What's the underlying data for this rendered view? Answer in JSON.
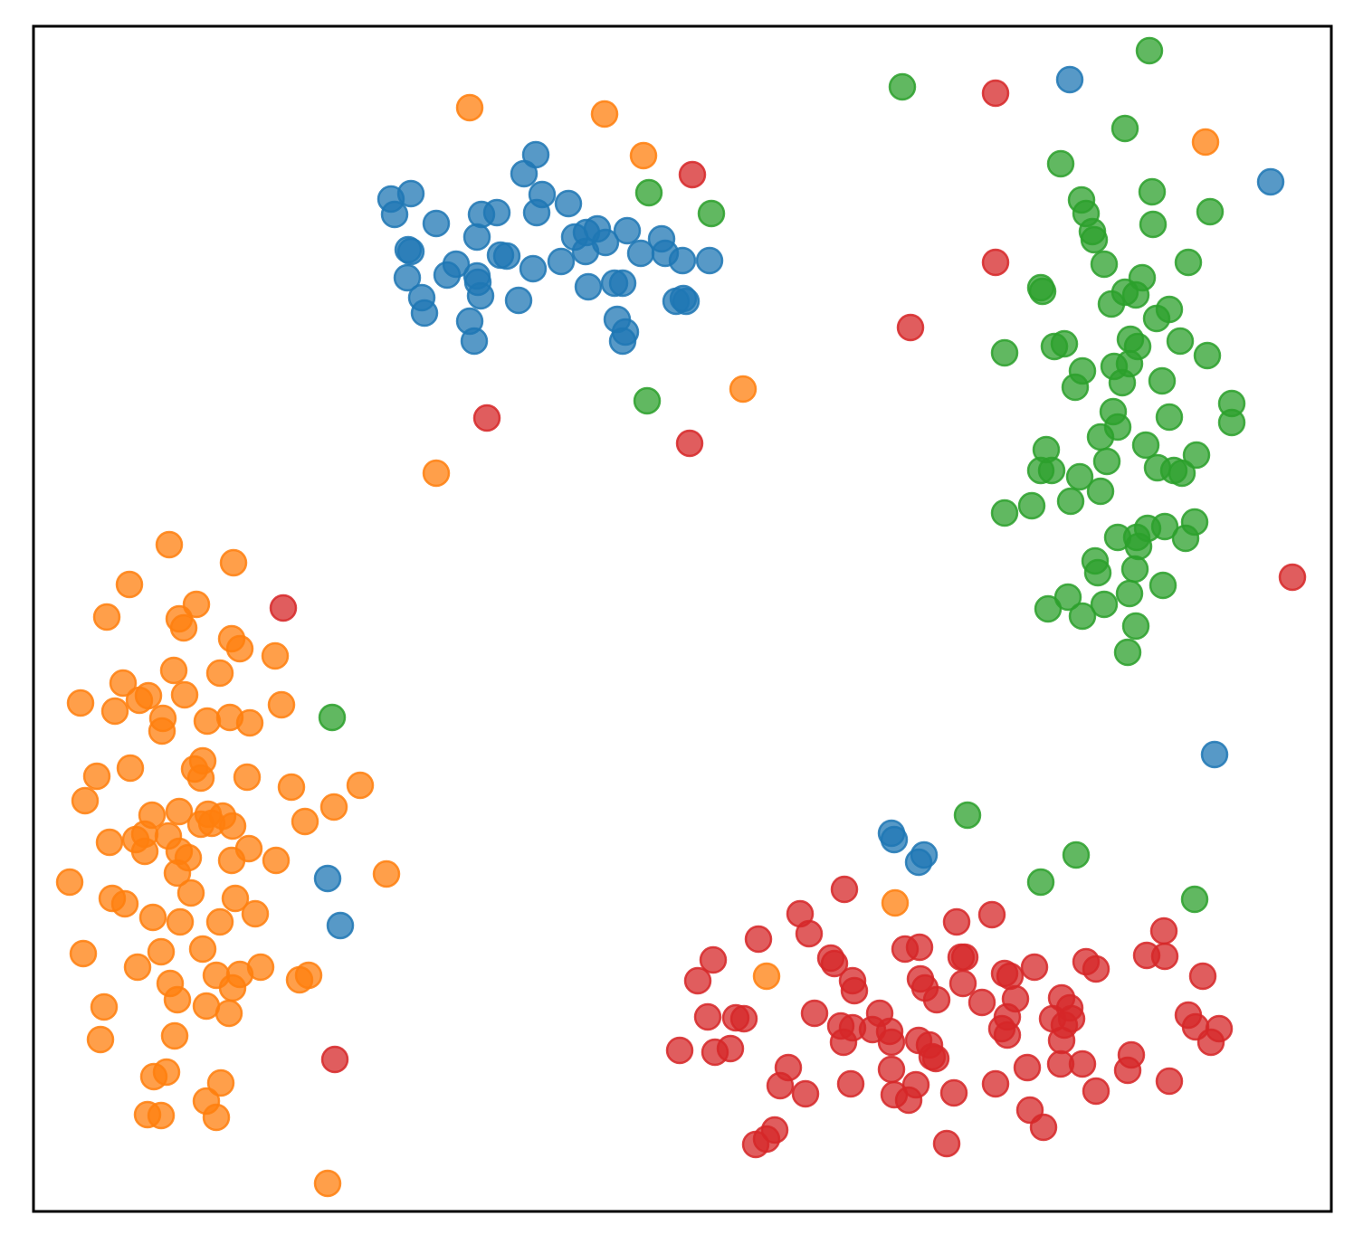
{
  "chart_data": {
    "type": "scatter",
    "xlim": [
      37,
      1471
    ],
    "ylim": [
      1339,
      29
    ],
    "series": [
      {
        "color": "#1f77b4",
        "x": [
          432,
          454,
          436,
          482,
          532,
          549,
          527,
          451,
          454,
          450,
          466,
          469,
          494,
          504,
          527,
          528,
          531,
          519,
          524,
          553,
          560,
          573,
          589,
          579,
          592,
          599,
          593,
          628,
          620,
          635,
          648,
          660,
          647,
          669,
          650,
          679,
          688,
          693,
          708,
          731,
          735,
          754,
          784,
          682,
          691,
          688,
          747,
          758,
          755,
          1182,
          1404,
          1342,
          985,
          988,
          1021,
          1015,
          362,
          376
        ],
        "y": [
          220,
          214,
          237,
          247,
          237,
          235,
          262,
          276,
          278,
          307,
          329,
          346,
          304,
          292,
          305,
          312,
          327,
          355,
          377,
          282,
          283,
          332,
          297,
          192,
          171,
          215,
          235,
          225,
          289,
          262,
          257,
          253,
          278,
          268,
          317,
          313,
          313,
          255,
          280,
          264,
          280,
          288,
          288,
          353,
          367,
          377,
          333,
          333,
          330,
          88,
          201,
          834,
          921,
          928,
          945,
          953,
          971,
          1023
        ]
      },
      {
        "color": "#ff7f0e",
        "x": [
          187,
          258,
          143,
          118,
          217,
          198,
          203,
          256,
          265,
          304,
          192,
          243,
          136,
          89,
          127,
          154,
          164,
          204,
          180,
          179,
          229,
          254,
          276,
          311,
          224,
          215,
          222,
          144,
          107,
          273,
          94,
          322,
          398,
          369,
          337,
          168,
          198,
          230,
          246,
          234,
          257,
          222,
          121,
          150,
          160,
          186,
          160,
          198,
          208,
          275,
          305,
          256,
          196,
          77,
          211,
          124,
          138,
          260,
          282,
          169,
          199,
          243,
          92,
          178,
          224,
          152,
          239,
          265,
          288,
          331,
          341,
          188,
          257,
          196,
          228,
          253,
          115,
          111,
          193,
          170,
          184,
          244,
          228,
          163,
          178,
          239,
          519,
          668,
          711,
          1332,
          821,
          482,
          427,
          989,
          847,
          362
        ],
        "y": [
          602,
          622,
          646,
          682,
          668,
          684,
          694,
          706,
          717,
          725,
          741,
          744,
          755,
          777,
          786,
          774,
          769,
          768,
          794,
          808,
          797,
          793,
          799,
          779,
          841,
          850,
          860,
          849,
          858,
          859,
          885,
          870,
          868,
          892,
          908,
          901,
          897,
          900,
          902,
          910,
          913,
          911,
          931,
          928,
          922,
          924,
          941,
          941,
          948,
          938,
          951,
          951,
          965,
          975,
          987,
          993,
          999,
          993,
          1010,
          1014,
          1019,
          1019,
          1054,
          1052,
          1049,
          1069,
          1078,
          1077,
          1069,
          1083,
          1078,
          1087,
          1092,
          1105,
          1112,
          1120,
          1113,
          1149,
          1145,
          1190,
          1185,
          1197,
          1217,
          1232,
          1233,
          1235,
          119,
          126,
          172,
          157,
          430,
          523,
          966,
          998,
          1079,
          1308
        ]
      },
      {
        "color": "#2ca02c",
        "x": [
          1270,
          1243,
          1172,
          1273,
          1195,
          1200,
          1337,
          1207,
          1209,
          1274,
          1220,
          1313,
          1262,
          1150,
          1152,
          1228,
          1243,
          1255,
          1292,
          1278,
          1165,
          1176,
          1110,
          1249,
          1257,
          1304,
          1334,
          1196,
          1188,
          1231,
          1248,
          1240,
          1284,
          1361,
          1361,
          1230,
          1292,
          1235,
          1216,
          1266,
          1156,
          1322,
          1150,
          1162,
          1223,
          1193,
          1279,
          1297,
          1306,
          1216,
          1183,
          1140,
          1110,
          1320,
          1287,
          1268,
          1235,
          1256,
          1258,
          1310,
          1210,
          1213,
          1254,
          1285,
          1248,
          1158,
          1180,
          1196,
          1220,
          1255,
          1246,
          997,
          717,
          786,
          715,
          367,
          1069,
          1189,
          1150,
          1320
        ],
        "y": [
          56,
          142,
          181,
          212,
          221,
          236,
          234,
          256,
          265,
          248,
          292,
          290,
          307,
          318,
          322,
          336,
          323,
          326,
          342,
          352,
          383,
          380,
          390,
          375,
          383,
          377,
          393,
          410,
          428,
          405,
          402,
          423,
          421,
          446,
          467,
          455,
          461,
          472,
          483,
          492,
          497,
          503,
          520,
          520,
          510,
          527,
          517,
          520,
          523,
          543,
          554,
          559,
          567,
          577,
          582,
          584,
          594,
          594,
          604,
          595,
          620,
          633,
          629,
          647,
          656,
          673,
          660,
          681,
          668,
          692,
          721,
          96,
          213,
          236,
          443,
          793,
          901,
          945,
          975,
          994
        ]
      },
      {
        "color": "#d62728",
        "x": [
          933,
          884,
          894,
          838,
          1096,
          1057,
          1000,
          1016,
          918,
          922,
          788,
          771,
          942,
          944,
          1017,
          1022,
          1062,
          1066,
          1064,
          1110,
          1116,
          1143,
          1200,
          1211,
          1267,
          1287,
          1286,
          1329,
          1035,
          1085,
          1122,
          1173,
          1182,
          900,
          972,
          813,
          822,
          782,
          929,
          942,
          964,
          983,
          1113,
          1107,
          1113,
          1163,
          1184,
          1176,
          1173,
          1313,
          1321,
          1347,
          1338,
          932,
          985,
          1015,
          1027,
          1030,
          1034,
          751,
          790,
          807,
          871,
          862,
          890,
          940,
          985,
          988,
          1004,
          1012,
          1054,
          1100,
          1135,
          1172,
          1196,
          1211,
          1250,
          1246,
          1292,
          1138,
          1153,
          1046,
          856,
          847,
          835,
          765,
          1100,
          1100,
          1006,
          538,
          762,
          313,
          1428,
          370
        ],
        "y": [
          983,
          1010,
          1032,
          1038,
          1011,
          1019,
          1049,
          1047,
          1059,
          1065,
          1061,
          1084,
          1084,
          1095,
          1082,
          1092,
          1058,
          1058,
          1087,
          1076,
          1079,
          1069,
          1063,
          1071,
          1056,
          1057,
          1029,
          1079,
          1105,
          1108,
          1104,
          1103,
          1114,
          1120,
          1120,
          1125,
          1126,
          1124,
          1134,
          1136,
          1138,
          1140,
          1124,
          1137,
          1144,
          1126,
          1126,
          1133,
          1150,
          1122,
          1135,
          1137,
          1152,
          1152,
          1152,
          1150,
          1155,
          1168,
          1170,
          1161,
          1163,
          1159,
          1180,
          1200,
          1209,
          1198,
          1182,
          1210,
          1216,
          1199,
          1208,
          1198,
          1180,
          1176,
          1176,
          1206,
          1166,
          1183,
          1195,
          1227,
          1246,
          1264,
          1249,
          1259,
          1265,
          193,
          103,
          290,
          362,
          462,
          490,
          672,
          638,
          1171
        ]
      }
    ]
  }
}
